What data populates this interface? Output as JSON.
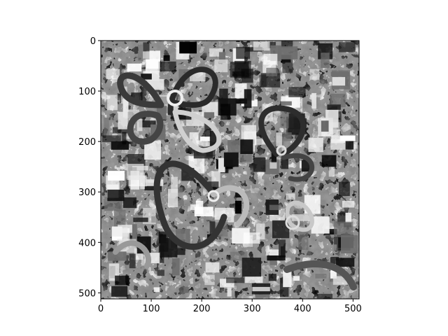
{
  "chart_data": {
    "type": "heatmap",
    "title": "",
    "xlabel": "",
    "ylabel": "",
    "colormap": "gray",
    "image_size": [
      512,
      512
    ],
    "xlim": [
      0,
      512
    ],
    "ylim": [
      512,
      0
    ],
    "x_ticks": [
      0,
      100,
      200,
      300,
      400,
      500
    ],
    "y_ticks": [
      0,
      100,
      200,
      300,
      400,
      500
    ],
    "x_tick_labels": [
      "0",
      "100",
      "200",
      "300",
      "400",
      "500"
    ],
    "y_tick_labels": [
      "0",
      "100",
      "200",
      "300",
      "400",
      "500"
    ],
    "content": "grayscale patchwork collage with overlaid flower outlines",
    "grid": false,
    "legend": false
  }
}
